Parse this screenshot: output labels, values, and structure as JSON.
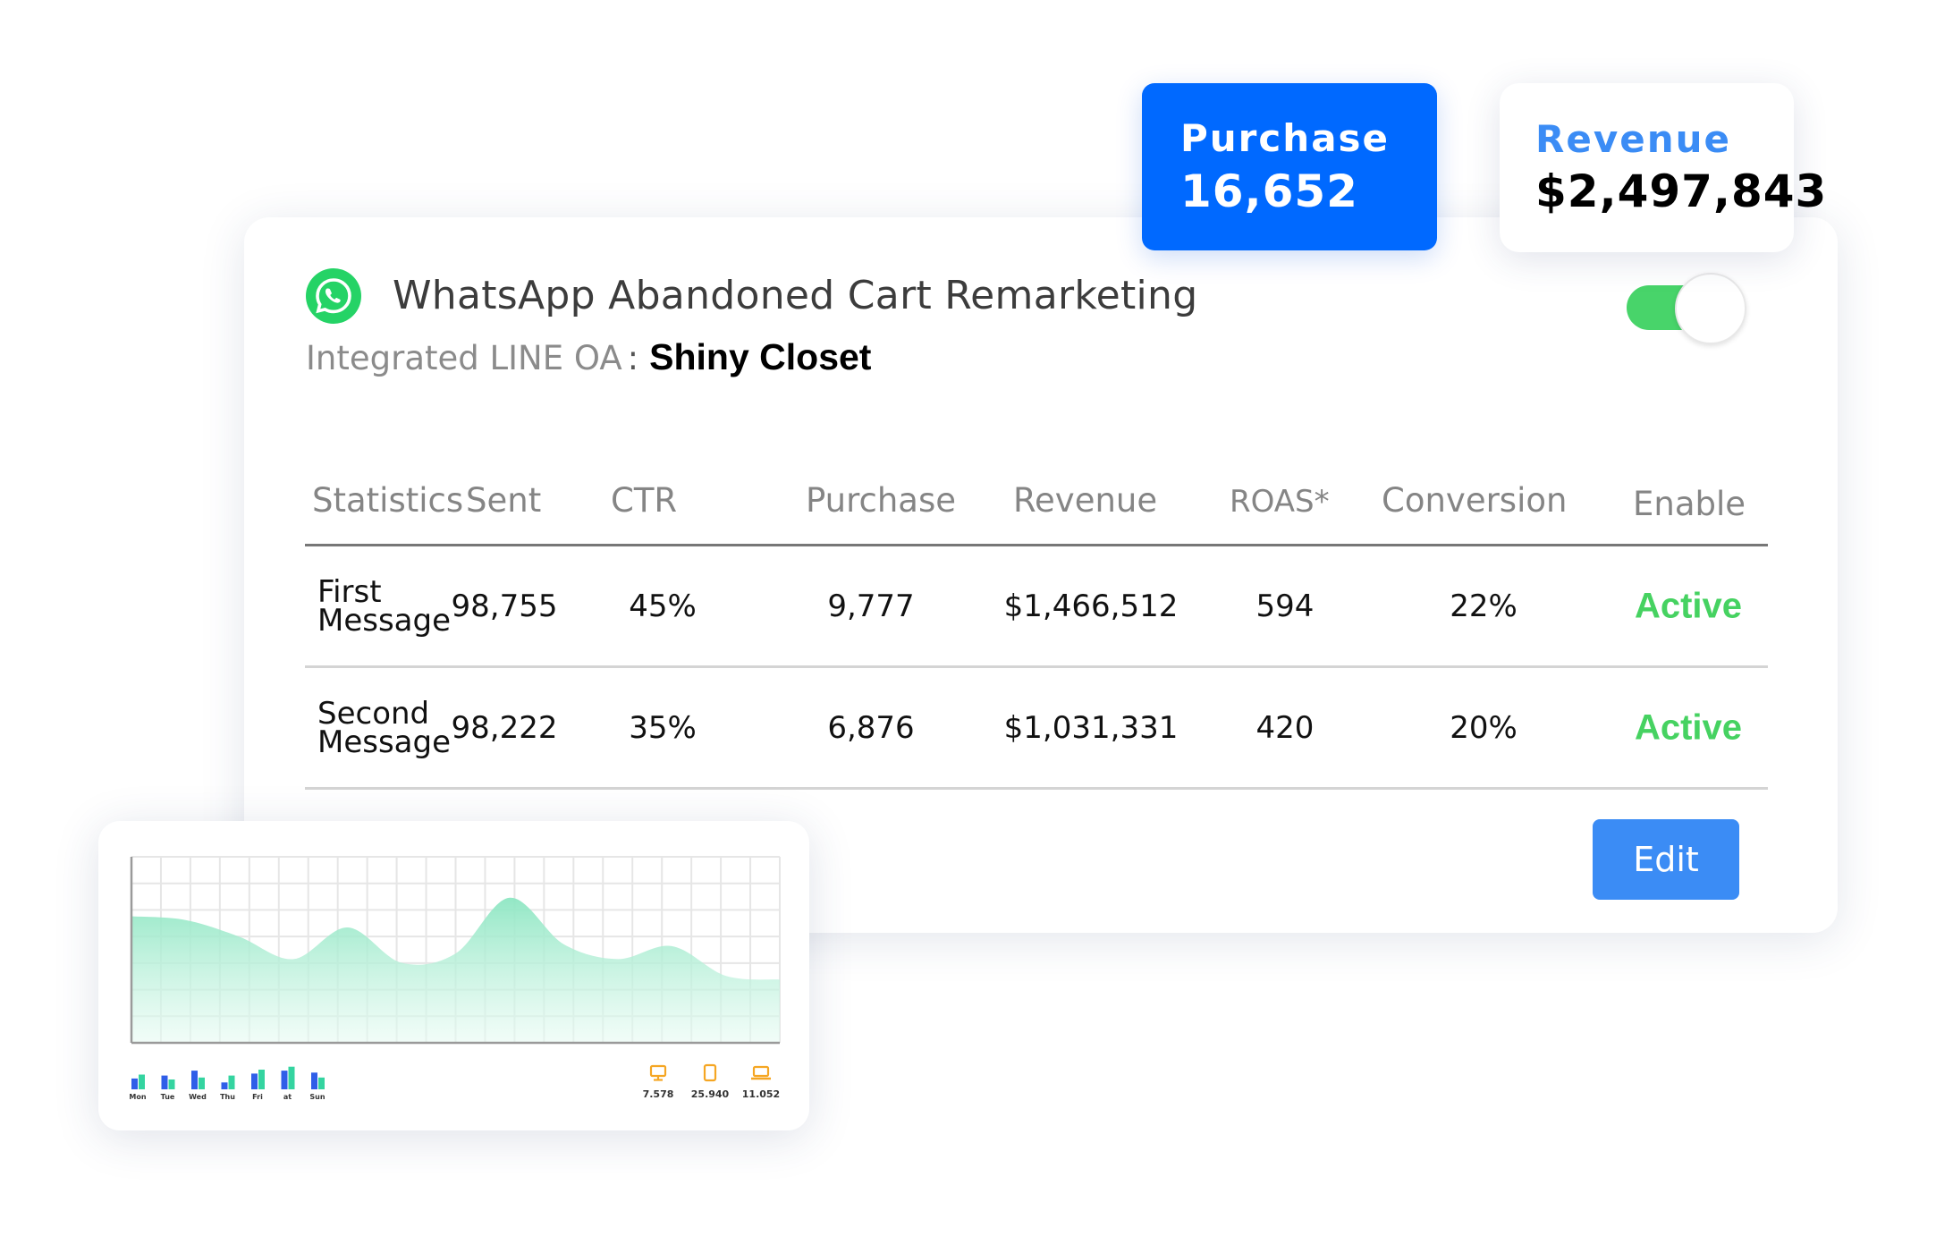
{
  "stats": {
    "purchase": {
      "label": "Purchase",
      "value": "16,652",
      "color": "#0069ff"
    },
    "revenue": {
      "label": "Revenue",
      "value": "$2,497,843"
    }
  },
  "campaign": {
    "icon": "whatsapp-icon",
    "title": "WhatsApp Abandoned Cart Remarketing",
    "integrated_label": "Integrated LINE OA",
    "separator": ":",
    "integrated_value": "Shiny Closet",
    "enabled": true
  },
  "table": {
    "headers": [
      "Statistics",
      "Sent",
      "CTR",
      "Purchase",
      "Revenue",
      "ROAS*",
      "Conversion",
      "Enable"
    ],
    "rows": [
      {
        "name_line1": "First",
        "name_line2": "Message",
        "sent": "98,755",
        "ctr": "45%",
        "purchase": "9,777",
        "revenue": "$1,466,512",
        "roas": "594",
        "conversion": "22%",
        "status": "Active"
      },
      {
        "name_line1": "Second",
        "name_line2": "Message",
        "sent": "98,222",
        "ctr": "35%",
        "purchase": "6,876",
        "revenue": "$1,031,331",
        "roas": "420",
        "conversion": "20%",
        "status": "Active"
      }
    ]
  },
  "actions": {
    "edit_label": "Edit"
  },
  "chart_data": {
    "type": "area",
    "title": "",
    "x": [
      0,
      1,
      2,
      3,
      4,
      5,
      6,
      7,
      8,
      9,
      10,
      11,
      12
    ],
    "values": [
      0.68,
      0.66,
      0.57,
      0.45,
      0.62,
      0.43,
      0.48,
      0.78,
      0.53,
      0.45,
      0.52,
      0.36,
      0.34
    ],
    "fill_color": "#9beaca",
    "grid": true,
    "mini_bars": {
      "categories": [
        "Mon",
        "Tue",
        "Wed",
        "Thu",
        "Fri",
        "at",
        "Sun"
      ],
      "series": [
        {
          "values": [
            0.55,
            0.7,
            0.95,
            0.35,
            0.8,
            0.95,
            0.85
          ],
          "color": "#2f5ee8"
        },
        {
          "values": [
            0.75,
            0.5,
            0.6,
            0.7,
            1.0,
            1.15,
            0.6
          ],
          "color": "#34d4a0"
        }
      ]
    },
    "devices": [
      {
        "icon": "monitor-icon",
        "value": "7.578"
      },
      {
        "icon": "tablet-icon",
        "value": "25.940"
      },
      {
        "icon": "laptop-icon",
        "value": "11.052"
      }
    ],
    "device_icon_color": "#f5a623"
  }
}
